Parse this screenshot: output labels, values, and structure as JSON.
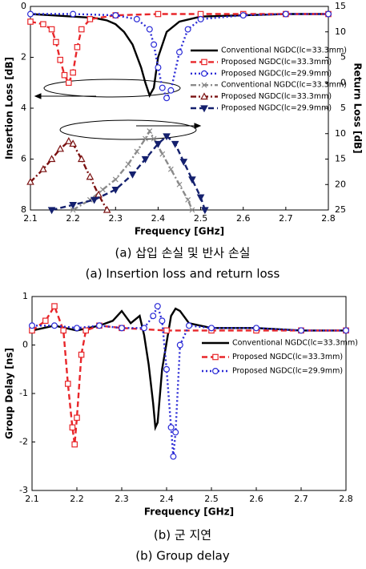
{
  "chart_data": [
    {
      "type": "line",
      "xlabel": "Frequency [GHz]",
      "ylabel": "Insertion Loss [dB]",
      "y2label": "Return Loss [dB]",
      "xlim": [
        2.1,
        2.8
      ],
      "xticks": [
        2.1,
        2.2,
        2.3,
        2.4,
        2.5,
        2.6,
        2.7,
        2.8
      ],
      "ylim": [
        8,
        0
      ],
      "yticks": [
        0,
        2,
        4,
        6,
        8
      ],
      "y2lim": [
        25,
        -15
      ],
      "y2ticks": [
        {
          "value": -15,
          "label": "15"
        },
        {
          "value": -10,
          "label": "10"
        },
        {
          "value": -5,
          "label": "5"
        },
        0,
        5,
        10,
        15,
        20,
        25
      ],
      "series": [
        {
          "name": "Conventional NGDC(lc=33.3mm)",
          "color": "#000000",
          "line_style": "solid",
          "marker": "none",
          "marker_filled": false,
          "x": [
            2.1,
            2.15,
            2.2,
            2.25,
            2.28,
            2.3,
            2.32,
            2.34,
            2.36,
            2.37,
            2.38,
            2.39,
            2.4,
            2.42,
            2.45,
            2.5,
            2.6,
            2.7,
            2.8
          ],
          "values": [
            0.3,
            0.35,
            0.4,
            0.45,
            0.55,
            0.7,
            1.0,
            1.5,
            2.4,
            3.0,
            3.5,
            3.2,
            2.0,
            1.0,
            0.6,
            0.4,
            0.35,
            0.3,
            0.3
          ]
        },
        {
          "name": "Proposed NGDC(lc=33.3mm)",
          "color": "#e8262a",
          "line_style": "dash",
          "marker": "square",
          "marker_filled": false,
          "x": [
            2.1,
            2.13,
            2.15,
            2.16,
            2.17,
            2.18,
            2.19,
            2.2,
            2.21,
            2.22,
            2.24,
            2.3,
            2.4,
            2.5,
            2.6,
            2.7,
            2.8
          ],
          "values": [
            0.6,
            0.7,
            0.9,
            1.4,
            2.1,
            2.7,
            3.0,
            2.6,
            1.6,
            0.9,
            0.5,
            0.35,
            0.3,
            0.3,
            0.3,
            0.3,
            0.3
          ]
        },
        {
          "name": "Proposed NGDC(lc=29.9mm)",
          "color": "#2a2ad6",
          "line_style": "dot",
          "marker": "circle",
          "marker_filled": false,
          "x": [
            2.1,
            2.2,
            2.3,
            2.35,
            2.38,
            2.39,
            2.4,
            2.41,
            2.42,
            2.43,
            2.45,
            2.47,
            2.5,
            2.6,
            2.7,
            2.8
          ],
          "values": [
            0.3,
            0.3,
            0.35,
            0.5,
            0.9,
            1.5,
            2.4,
            3.2,
            3.6,
            3.3,
            1.8,
            0.9,
            0.5,
            0.35,
            0.3,
            0.3
          ]
        },
        {
          "name": "Conventional NGDC(lc=33.3mm)",
          "color": "#8a8a8a",
          "line_style": "dashdot",
          "marker": "x",
          "marker_filled": false,
          "axis": "y2",
          "x": [
            2.2,
            2.24,
            2.27,
            2.3,
            2.33,
            2.35,
            2.37,
            2.38,
            2.39,
            2.41,
            2.43,
            2.45,
            2.47,
            2.48
          ],
          "values": [
            25,
            23,
            21,
            19,
            16,
            13.5,
            11,
            9.5,
            11,
            14,
            17,
            20,
            23,
            25
          ]
        },
        {
          "name": "Proposed NGDC(lc=33.3mm)",
          "color": "#7a1010",
          "line_style": "dashdot",
          "marker": "triangle",
          "marker_filled": false,
          "axis": "y2",
          "x": [
            2.1,
            2.13,
            2.15,
            2.17,
            2.19,
            2.2,
            2.22,
            2.24,
            2.26,
            2.28
          ],
          "values": [
            19.5,
            17,
            15,
            13,
            11.5,
            12,
            15,
            18.5,
            22,
            25
          ]
        },
        {
          "name": "Proposed NGDC(lc=29.9mm)",
          "color": "#14206e",
          "line_style": "dash",
          "marker": "triangle-down",
          "marker_filled": true,
          "axis": "y2",
          "x": [
            2.15,
            2.2,
            2.25,
            2.3,
            2.34,
            2.37,
            2.4,
            2.42,
            2.44,
            2.46,
            2.48,
            2.5,
            2.51
          ],
          "values": [
            25,
            24,
            23,
            21,
            18,
            15,
            12,
            10.5,
            12,
            15.5,
            19,
            22.5,
            25
          ]
        }
      ],
      "caption": [
        "(a) 삽입 손실 및 반사 손실",
        "(a) Insertion loss and return loss"
      ]
    },
    {
      "type": "line",
      "xlabel": "Frequency [GHz]",
      "ylabel": "Group Delay [ns]",
      "xlim": [
        2.1,
        2.8
      ],
      "xticks": [
        2.1,
        2.2,
        2.3,
        2.4,
        2.5,
        2.6,
        2.7,
        2.8
      ],
      "ylim": [
        -3,
        1
      ],
      "yticks": [
        -3,
        -2,
        -1,
        0,
        1
      ],
      "series": [
        {
          "name": "Conventional NGDC(lc=33.3mm)",
          "color": "#000000",
          "line_style": "solid",
          "marker": "none",
          "marker_filled": false,
          "x": [
            2.1,
            2.15,
            2.2,
            2.25,
            2.28,
            2.3,
            2.32,
            2.34,
            2.35,
            2.36,
            2.37,
            2.375,
            2.38,
            2.39,
            2.41,
            2.42,
            2.43,
            2.45,
            2.5,
            2.6,
            2.7,
            2.8
          ],
          "values": [
            0.3,
            0.4,
            0.3,
            0.4,
            0.5,
            0.7,
            0.45,
            0.6,
            0.2,
            -0.4,
            -1.2,
            -1.7,
            -1.6,
            -0.5,
            0.6,
            0.75,
            0.7,
            0.45,
            0.35,
            0.35,
            0.3,
            0.3
          ]
        },
        {
          "name": "Proposed NGDC(lc=33.3mm)",
          "color": "#e8262a",
          "line_style": "dash",
          "marker": "square",
          "marker_filled": false,
          "x": [
            2.1,
            2.13,
            2.15,
            2.17,
            2.18,
            2.19,
            2.195,
            2.2,
            2.21,
            2.22,
            2.25,
            2.3,
            2.4,
            2.5,
            2.6,
            2.7,
            2.8
          ],
          "values": [
            0.3,
            0.5,
            0.8,
            0.3,
            -0.8,
            -1.7,
            -2.05,
            -1.5,
            -0.2,
            0.3,
            0.4,
            0.35,
            0.3,
            0.3,
            0.3,
            0.3,
            0.3
          ]
        },
        {
          "name": "Proposed NGDC(lc=29.9mm)",
          "color": "#2a2ad6",
          "line_style": "dot",
          "marker": "circle",
          "marker_filled": false,
          "x": [
            2.1,
            2.15,
            2.2,
            2.25,
            2.3,
            2.35,
            2.37,
            2.38,
            2.39,
            2.4,
            2.41,
            2.415,
            2.42,
            2.43,
            2.45,
            2.5,
            2.6,
            2.7,
            2.8
          ],
          "values": [
            0.4,
            0.4,
            0.35,
            0.4,
            0.35,
            0.35,
            0.6,
            0.8,
            0.5,
            -0.5,
            -1.7,
            -2.3,
            -1.8,
            0,
            0.4,
            0.35,
            0.35,
            0.3,
            0.3
          ]
        }
      ],
      "caption": [
        "(b) 군 지연",
        "(b) Group delay"
      ]
    }
  ]
}
